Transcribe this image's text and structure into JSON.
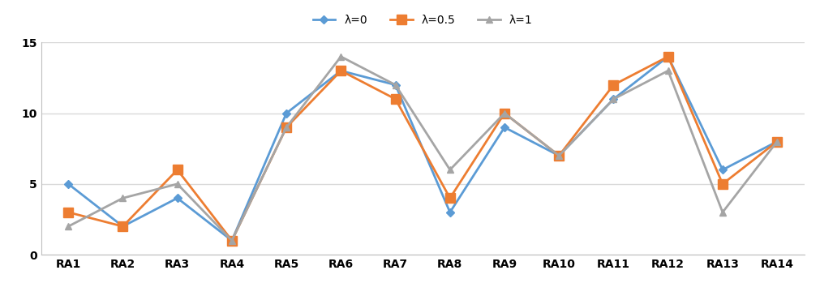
{
  "chart_data": {
    "type": "line",
    "categories": [
      "RA1",
      "RA2",
      "RA3",
      "RA4",
      "RA5",
      "RA6",
      "RA7",
      "RA8",
      "RA9",
      "RA10",
      "RA11",
      "RA12",
      "RA13",
      "RA14"
    ],
    "series": [
      {
        "name": "λ=0",
        "color": "#5b9bd5",
        "marker": "diamond",
        "line_style": "solid",
        "values": [
          5,
          2,
          4,
          1,
          10,
          13,
          12,
          3,
          9,
          7,
          11,
          14,
          6,
          8
        ]
      },
      {
        "name": "λ=0.5",
        "color": "#ed7d31",
        "marker": "square",
        "line_style": "solid",
        "values": [
          3,
          2,
          6,
          1,
          9,
          13,
          11,
          4,
          10,
          7,
          12,
          14,
          5,
          8
        ]
      },
      {
        "name": "λ=1",
        "color": "#a5a5a5",
        "marker": "triangle",
        "line_style": "solid",
        "values": [
          2,
          4,
          5,
          1,
          9,
          14,
          12,
          6,
          10,
          7,
          11,
          13,
          3,
          8
        ]
      }
    ],
    "ylim": [
      0,
      15
    ],
    "yticks": [
      0,
      5,
      10,
      15
    ],
    "grid": true,
    "legend": "upper center"
  }
}
